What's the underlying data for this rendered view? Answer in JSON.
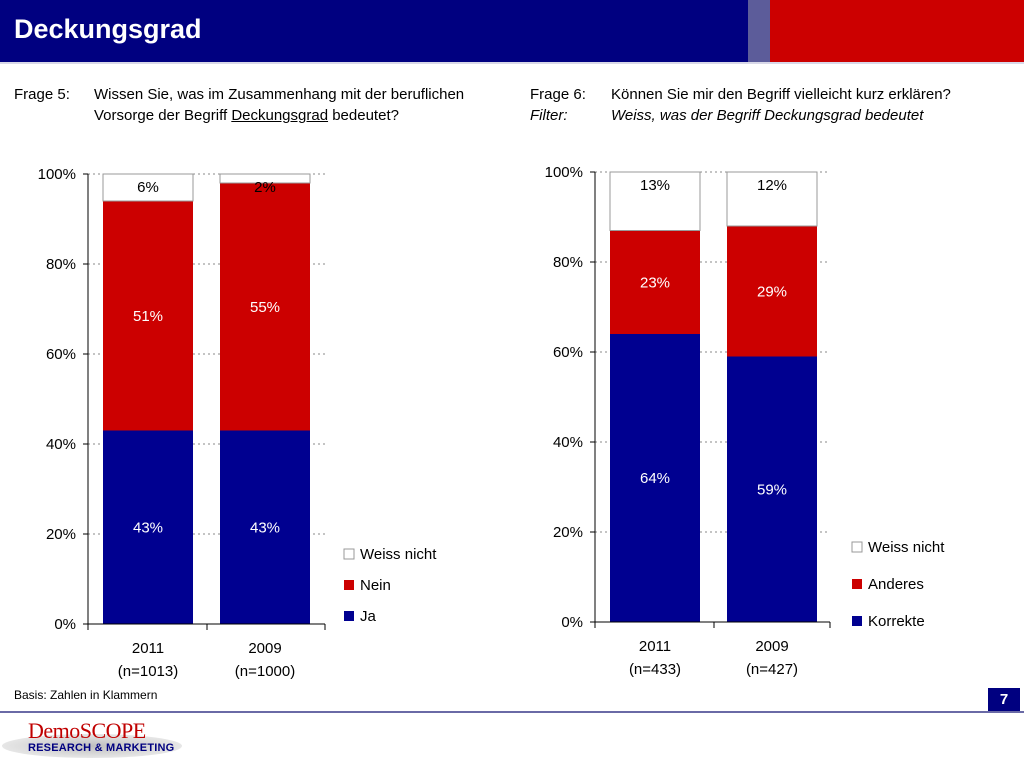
{
  "header": {
    "title": "Deckungsgrad"
  },
  "questions": {
    "left": {
      "label": "Frage 5:",
      "text_a": "Wissen Sie, was im Zusammenhang mit der beruflichen Vorsorge der Begriff",
      "text_u": "Deckungsgrad",
      "text_b": "bedeutet?"
    },
    "right": {
      "label": "Frage 6:",
      "text": "Können Sie mir den Begriff vielleicht kurz erklären?",
      "filter_label": "Filter:",
      "filter_text": "Weiss, was der Begriff Deckungsgrad bedeutet"
    }
  },
  "colors": {
    "blue": "#000090",
    "red": "#cc0000",
    "white": "#ffffff",
    "header_blue": "#000080",
    "header_red": "#cc0000"
  },
  "chart_data": [
    {
      "type": "bar",
      "stacked": true,
      "categories": [
        "2011",
        "2009"
      ],
      "category_sublabels": [
        "(n=1013)",
        "(n=1000)"
      ],
      "ylim": [
        0,
        100
      ],
      "ytick_labels": [
        "0%",
        "20%",
        "40%",
        "60%",
        "80%",
        "100%"
      ],
      "grid": true,
      "legend_position": "right",
      "series": [
        {
          "name": "Ja",
          "values": [
            43,
            43
          ],
          "labels": [
            "43%",
            "43%"
          ],
          "color": "#000090",
          "label_color": "#ffffff"
        },
        {
          "name": "Nein",
          "values": [
            51,
            55
          ],
          "labels": [
            "51%",
            "55%"
          ],
          "color": "#cc0000",
          "label_color": "#ffffff"
        },
        {
          "name": "Weiss nicht",
          "values": [
            6,
            2
          ],
          "labels": [
            "6%",
            "2%"
          ],
          "color": "#ffffff",
          "label_color": "#000000"
        }
      ]
    },
    {
      "type": "bar",
      "stacked": true,
      "categories": [
        "2011",
        "2009"
      ],
      "category_sublabels": [
        "(n=433)",
        "(n=427)"
      ],
      "ylim": [
        0,
        100
      ],
      "ytick_labels": [
        "0%",
        "20%",
        "40%",
        "60%",
        "80%",
        "100%"
      ],
      "grid": true,
      "legend_position": "right",
      "series": [
        {
          "name": "Korrekte",
          "values": [
            64,
            59
          ],
          "labels": [
            "64%",
            "59%"
          ],
          "color": "#000090",
          "label_color": "#ffffff"
        },
        {
          "name": "Anderes",
          "values": [
            23,
            29
          ],
          "labels": [
            "23%",
            "29%"
          ],
          "color": "#cc0000",
          "label_color": "#ffffff"
        },
        {
          "name": "Weiss nicht",
          "values": [
            13,
            12
          ],
          "labels": [
            "13%",
            "12%"
          ],
          "color": "#ffffff",
          "label_color": "#000000"
        }
      ]
    }
  ],
  "footer": {
    "basis": "Basis: Zahlen in Klammern",
    "page_number": "7",
    "logo_name": "DemoSCOPE",
    "logo_sub": "RESEARCH & MARKETING"
  }
}
